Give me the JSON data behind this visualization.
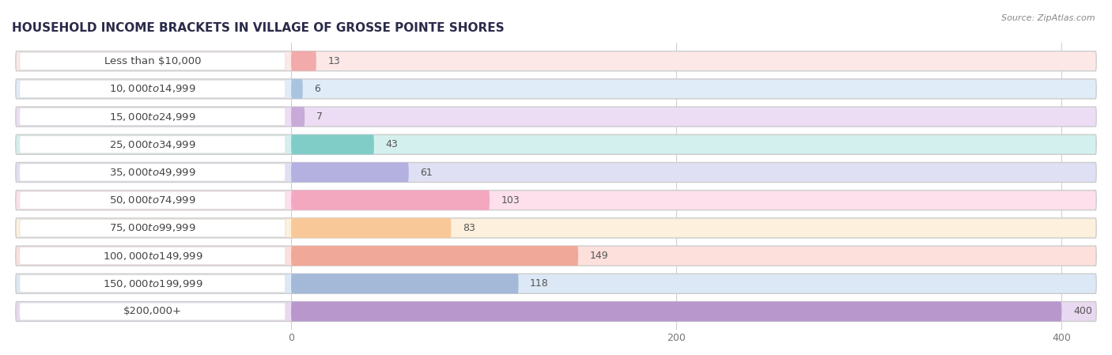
{
  "title": "HOUSEHOLD INCOME BRACKETS IN VILLAGE OF GROSSE POINTE SHORES",
  "source": "Source: ZipAtlas.com",
  "categories": [
    "Less than $10,000",
    "$10,000 to $14,999",
    "$15,000 to $24,999",
    "$25,000 to $34,999",
    "$35,000 to $49,999",
    "$50,000 to $74,999",
    "$75,000 to $99,999",
    "$100,000 to $149,999",
    "$150,000 to $199,999",
    "$200,000+"
  ],
  "values": [
    13,
    6,
    7,
    43,
    61,
    103,
    83,
    149,
    118,
    400
  ],
  "bar_colors": [
    "#f2aaaa",
    "#aac4e0",
    "#c8aad8",
    "#80cdc8",
    "#b4b0e0",
    "#f4a8c0",
    "#f8c898",
    "#f0a898",
    "#a4b8d8",
    "#b898cc"
  ],
  "bar_bg_colors": [
    "#fde8e8",
    "#e0ecf8",
    "#ecddf5",
    "#d4f0ee",
    "#e0e0f5",
    "#fde0ec",
    "#fdf0dc",
    "#fde0dc",
    "#dce8f5",
    "#e8d8f0"
  ],
  "xlim": [
    0,
    420
  ],
  "xticks": [
    0,
    200,
    400
  ],
  "background_color": "#f5f5f5",
  "title_fontsize": 11,
  "label_fontsize": 9.5,
  "value_fontsize": 9
}
